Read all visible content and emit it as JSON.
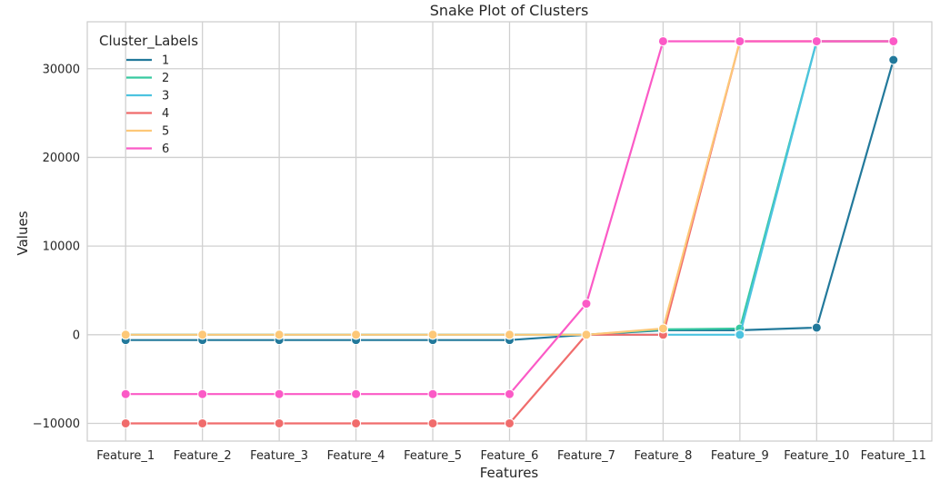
{
  "chart_data": {
    "type": "line",
    "title": "Snake Plot of Clusters",
    "xlabel": "Features",
    "ylabel": "Values",
    "categories": [
      "Feature_1",
      "Feature_2",
      "Feature_3",
      "Feature_4",
      "Feature_5",
      "Feature_6",
      "Feature_7",
      "Feature_8",
      "Feature_9",
      "Feature_10",
      "Feature_11"
    ],
    "ylim": [
      -12000,
      35300
    ],
    "yticks": [
      -10000,
      0,
      10000,
      20000,
      30000
    ],
    "ytick_labels": [
      "−10000",
      "0",
      "10000",
      "20000",
      "30000"
    ],
    "grid": true,
    "legend": {
      "title": "Cluster_Labels",
      "position": "top-left"
    },
    "series": [
      {
        "name": "1",
        "color": "#22799b",
        "values": [
          -600,
          -600,
          -600,
          -600,
          -600,
          -600,
          0,
          500,
          500,
          800,
          31000
        ]
      },
      {
        "name": "2",
        "color": "#37c9a0",
        "values": [
          0,
          0,
          0,
          0,
          0,
          0,
          0,
          600,
          700,
          33100,
          33100
        ]
      },
      {
        "name": "3",
        "color": "#4cc3e0",
        "values": [
          0,
          0,
          0,
          0,
          0,
          0,
          0,
          0,
          0,
          33100,
          33100
        ]
      },
      {
        "name": "4",
        "color": "#f06c6c",
        "values": [
          -10000,
          -10000,
          -10000,
          -10000,
          -10000,
          -10000,
          0,
          0,
          33100,
          33100,
          33100
        ]
      },
      {
        "name": "5",
        "color": "#fdc878",
        "values": [
          0,
          0,
          0,
          0,
          0,
          0,
          0,
          700,
          33100,
          33100,
          33100
        ]
      },
      {
        "name": "6",
        "color": "#fb5ac6",
        "values": [
          -6700,
          -6700,
          -6700,
          -6700,
          -6700,
          -6700,
          3500,
          33100,
          33100,
          33100,
          33100
        ]
      }
    ]
  }
}
